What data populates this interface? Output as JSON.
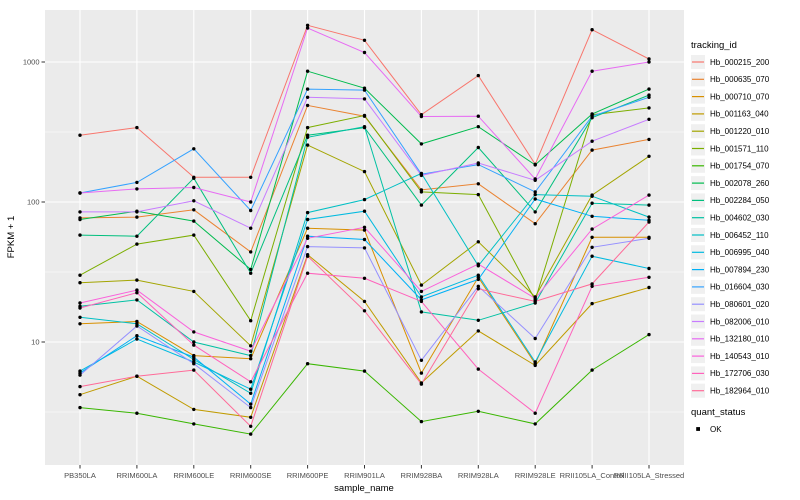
{
  "chart_data": {
    "type": "line",
    "title": "",
    "xlabel": "sample_name",
    "ylabel": "FPKM + 1",
    "yscale": "log10",
    "yticks": [
      10,
      100,
      1000
    ],
    "ylim": [
      1.3,
      2500
    ],
    "grid": "on",
    "legend_position": "right",
    "legend_title": "tracking_id",
    "legend2": {
      "title": "quant_status",
      "items": [
        {
          "label": "OK",
          "marker": "black-point"
        }
      ]
    },
    "panel_color": "#EBEBEB",
    "grid_color": "#FFFFFF",
    "point_color": "#000000",
    "x_categories": [
      "PB350LA",
      "RRIM600LA",
      "RRIM600LE",
      "RRIM600SE",
      "RRIM600PE",
      "RRIM901LA",
      "RRIM928BA",
      "RRIM928LA",
      "RRIM928LE",
      "RRII105LA_Control",
      "RRII105LA_Stressed"
    ],
    "series": [
      {
        "name": "Hb_000215_200",
        "color": "#F8766D",
        "values": [
          300,
          340,
          150,
          150,
          1830,
          1430,
          420,
          800,
          186,
          1700,
          1050
        ]
      },
      {
        "name": "Hb_000635_070",
        "color": "#EA8331",
        "values": [
          77,
          78,
          88,
          44,
          490,
          410,
          122,
          135,
          70,
          235,
          280
        ]
      },
      {
        "name": "Hb_000710_070",
        "color": "#D89000",
        "values": [
          13.5,
          14,
          8,
          7.6,
          65,
          63,
          6,
          29,
          7,
          56,
          56
        ]
      },
      {
        "name": "Hb_001163_040",
        "color": "#C09B00",
        "values": [
          4.2,
          5.7,
          3.3,
          2.9,
          42,
          19.5,
          5.1,
          12,
          6.8,
          18.8,
          24.5
        ]
      },
      {
        "name": "Hb_001220_010",
        "color": "#A3A500",
        "values": [
          26.5,
          27.7,
          23,
          9.4,
          255,
          165,
          25.5,
          52,
          21,
          112,
          212
        ]
      },
      {
        "name": "Hb_001571_110",
        "color": "#7CAE00",
        "values": [
          30,
          50,
          58,
          14.2,
          340,
          415,
          118,
          113,
          20,
          420,
          470
        ]
      },
      {
        "name": "Hb_001754_070",
        "color": "#39B600",
        "values": [
          3.4,
          3.1,
          2.6,
          2.2,
          7,
          6.2,
          2.7,
          3.2,
          2.6,
          6.3,
          11.3
        ]
      },
      {
        "name": "Hb_002078_260",
        "color": "#00BB4E",
        "values": [
          75,
          86,
          73,
          33,
          860,
          650,
          260,
          345,
          184,
          425,
          640
        ]
      },
      {
        "name": "Hb_002284_050",
        "color": "#00BF7D",
        "values": [
          58,
          57,
          148,
          31,
          300,
          340,
          95,
          245,
          85,
          400,
          580
        ]
      },
      {
        "name": "Hb_004602_030",
        "color": "#00C1A3",
        "values": [
          18,
          20,
          10,
          8,
          290,
          345,
          16.4,
          14.3,
          19,
          98,
          95
        ]
      },
      {
        "name": "Hb_006452_110",
        "color": "#00BFC4",
        "values": [
          15,
          13.5,
          7.5,
          4.3,
          84,
          104,
          160,
          35,
          113,
          110,
          78
        ]
      },
      {
        "name": "Hb_006995_040",
        "color": "#00BAE0",
        "values": [
          6.2,
          10.5,
          7.2,
          4.6,
          75,
          86,
          21,
          30,
          7.2,
          41,
          33.5
        ]
      },
      {
        "name": "Hb_007894_230",
        "color": "#00B0F6",
        "values": [
          6.0,
          11.1,
          7.8,
          3.6,
          57,
          54,
          20,
          28,
          105,
          79,
          74
        ]
      },
      {
        "name": "Hb_016604_030",
        "color": "#35A2FF",
        "values": [
          116,
          138,
          240,
          87,
          640,
          630,
          158,
          185,
          118,
          410,
          560
        ]
      },
      {
        "name": "Hb_080601_020",
        "color": "#9590FF",
        "values": [
          5.8,
          13,
          7.0,
          3.4,
          48,
          47,
          7.4,
          25,
          10.6,
          47.5,
          55
        ]
      },
      {
        "name": "Hb_082006_010",
        "color": "#C77CFF",
        "values": [
          85,
          85,
          102,
          65,
          560,
          545,
          155,
          190,
          143,
          272,
          390
        ]
      },
      {
        "name": "Hb_132180_010",
        "color": "#E76BF3",
        "values": [
          116,
          124,
          127,
          100,
          1750,
          1170,
          408,
          410,
          146,
          860,
          1000
        ]
      },
      {
        "name": "Hb_140543_010",
        "color": "#FA62DB",
        "values": [
          19,
          23.5,
          11.8,
          8.6,
          55,
          66,
          23,
          36,
          20.5,
          64,
          112
        ]
      },
      {
        "name": "Hb_172706_030",
        "color": "#FF62BC",
        "values": [
          17.5,
          22.5,
          9.5,
          5.2,
          31,
          28.5,
          19.5,
          6.4,
          3.1,
          25,
          29
        ]
      },
      {
        "name": "Hb_182964_010",
        "color": "#FF6A98",
        "values": [
          4.8,
          5.7,
          6.3,
          2.5,
          41,
          16.7,
          5.0,
          24,
          19.5,
          26,
          72
        ]
      }
    ]
  }
}
